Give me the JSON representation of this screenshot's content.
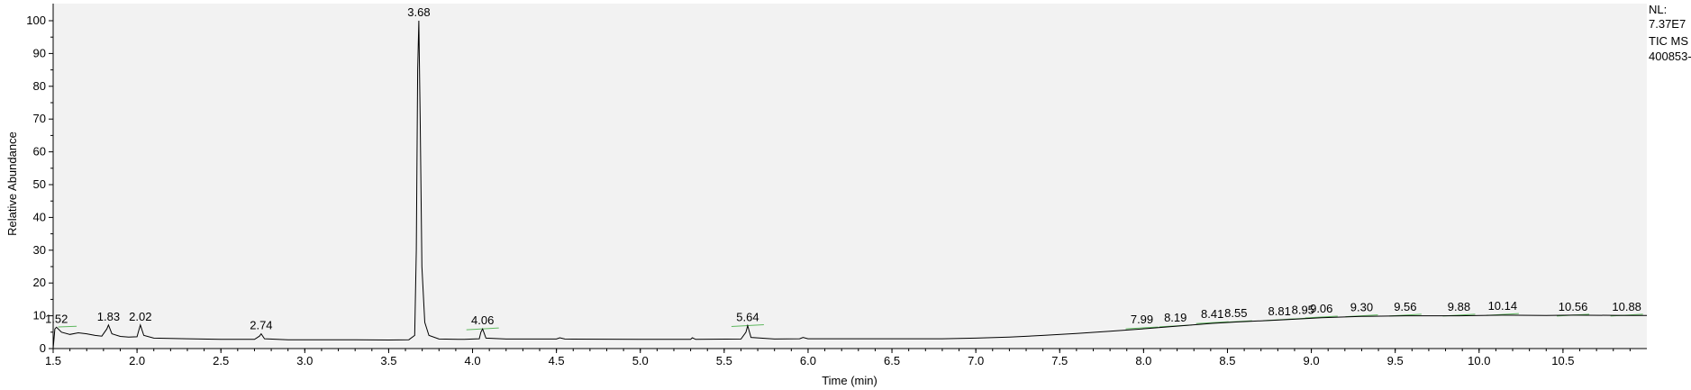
{
  "chart_data": {
    "type": "line",
    "xlabel": "Time (min)",
    "ylabel": "Relative Abundance",
    "xlim": [
      1.5,
      11.0
    ],
    "ylim": [
      0,
      100
    ],
    "x_ticks": [
      "1.5",
      "2.0",
      "2.5",
      "3.0",
      "3.5",
      "4.0",
      "4.5",
      "5.0",
      "5.5",
      "6.0",
      "6.5",
      "7.0",
      "7.5",
      "8.0",
      "8.5",
      "9.0",
      "9.5",
      "10.0",
      "10.5"
    ],
    "y_ticks": [
      "0",
      "10",
      "20",
      "30",
      "40",
      "50",
      "60",
      "70",
      "80",
      "90",
      "100"
    ],
    "side_info": [
      "NL:",
      "7.37E7",
      "TIC  MS",
      "400853-"
    ],
    "grid": false,
    "peak_labels": [
      {
        "text": "1.52",
        "x": 1.52,
        "y": 6.5
      },
      {
        "text": "1.83",
        "x": 1.83,
        "y": 7.2
      },
      {
        "text": "2.02",
        "x": 2.02,
        "y": 7.2
      },
      {
        "text": "2.74",
        "x": 2.74,
        "y": 4.5
      },
      {
        "text": "3.68",
        "x": 3.68,
        "y": 100
      },
      {
        "text": "4.06",
        "x": 4.06,
        "y": 6.0
      },
      {
        "text": "5.64",
        "x": 5.64,
        "y": 7.0
      },
      {
        "text": "7.99",
        "x": 7.99,
        "y": 6.3
      },
      {
        "text": "8.19",
        "x": 8.19,
        "y": 6.9
      },
      {
        "text": "8.41",
        "x": 8.41,
        "y": 7.9
      },
      {
        "text": "8.55",
        "x": 8.55,
        "y": 8.2
      },
      {
        "text": "8.81",
        "x": 8.81,
        "y": 8.8
      },
      {
        "text": "8.95",
        "x": 8.95,
        "y": 9.2
      },
      {
        "text": "9.06",
        "x": 9.06,
        "y": 9.6
      },
      {
        "text": "9.30",
        "x": 9.3,
        "y": 10.0
      },
      {
        "text": "9.56",
        "x": 9.56,
        "y": 10.2
      },
      {
        "text": "9.88",
        "x": 9.88,
        "y": 10.2
      },
      {
        "text": "10.14",
        "x": 10.14,
        "y": 10.4
      },
      {
        "text": "10.56",
        "x": 10.56,
        "y": 10.2
      },
      {
        "text": "10.88",
        "x": 10.88,
        "y": 10.2
      }
    ],
    "baseline_points": [
      [
        1.5,
        0
      ],
      [
        1.51,
        6.0
      ],
      [
        1.52,
        6.5
      ],
      [
        1.55,
        5.0
      ],
      [
        1.6,
        4.3
      ],
      [
        1.65,
        4.8
      ],
      [
        1.7,
        4.5
      ],
      [
        1.75,
        4.0
      ],
      [
        1.79,
        3.8
      ],
      [
        1.82,
        6.0
      ],
      [
        1.83,
        7.2
      ],
      [
        1.85,
        4.5
      ],
      [
        1.9,
        3.7
      ],
      [
        1.95,
        3.5
      ],
      [
        2.0,
        3.6
      ],
      [
        2.01,
        5.5
      ],
      [
        2.02,
        7.2
      ],
      [
        2.04,
        4.0
      ],
      [
        2.1,
        3.2
      ],
      [
        2.3,
        3.0
      ],
      [
        2.5,
        2.8
      ],
      [
        2.7,
        2.8
      ],
      [
        2.73,
        3.8
      ],
      [
        2.74,
        4.5
      ],
      [
        2.76,
        3.0
      ],
      [
        2.9,
        2.7
      ],
      [
        3.1,
        2.7
      ],
      [
        3.3,
        2.7
      ],
      [
        3.5,
        2.6
      ],
      [
        3.62,
        2.7
      ],
      [
        3.655,
        4.0
      ],
      [
        3.665,
        30.0
      ],
      [
        3.673,
        85.0
      ],
      [
        3.68,
        100
      ],
      [
        3.688,
        70.0
      ],
      [
        3.698,
        25.0
      ],
      [
        3.715,
        8.0
      ],
      [
        3.74,
        4.0
      ],
      [
        3.8,
        2.9
      ],
      [
        3.95,
        2.8
      ],
      [
        4.04,
        3.0
      ],
      [
        4.05,
        5.0
      ],
      [
        4.06,
        6.0
      ],
      [
        4.08,
        3.2
      ],
      [
        4.2,
        2.9
      ],
      [
        4.5,
        2.9
      ],
      [
        4.52,
        3.3
      ],
      [
        4.55,
        2.9
      ],
      [
        5.0,
        2.8
      ],
      [
        5.3,
        2.8
      ],
      [
        5.31,
        3.3
      ],
      [
        5.33,
        2.8
      ],
      [
        5.6,
        2.9
      ],
      [
        5.63,
        5.0
      ],
      [
        5.64,
        7.0
      ],
      [
        5.66,
        3.4
      ],
      [
        5.8,
        2.9
      ],
      [
        5.95,
        3.0
      ],
      [
        5.97,
        3.4
      ],
      [
        6.0,
        3.0
      ],
      [
        6.4,
        3.0
      ],
      [
        6.8,
        3.0
      ],
      [
        7.0,
        3.2
      ],
      [
        7.2,
        3.5
      ],
      [
        7.4,
        4.0
      ],
      [
        7.6,
        4.6
      ],
      [
        7.8,
        5.3
      ],
      [
        7.99,
        6.0
      ],
      [
        8.19,
        6.8
      ],
      [
        8.41,
        7.7
      ],
      [
        8.55,
        8.1
      ],
      [
        8.81,
        8.7
      ],
      [
        8.95,
        9.1
      ],
      [
        9.06,
        9.4
      ],
      [
        9.3,
        9.8
      ],
      [
        9.56,
        10.0
      ],
      [
        9.88,
        10.0
      ],
      [
        10.14,
        10.2
      ],
      [
        10.4,
        10.1
      ],
      [
        10.56,
        10.2
      ],
      [
        10.88,
        10.1
      ],
      [
        11.0,
        10.1
      ]
    ]
  }
}
